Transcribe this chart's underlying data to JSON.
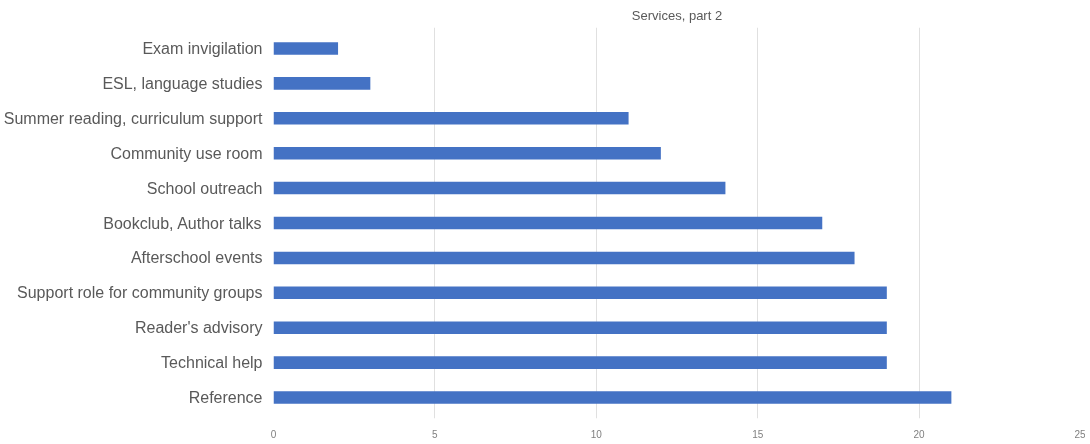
{
  "chart_data": {
    "type": "bar",
    "orientation": "horizontal",
    "title": "Services, part 2",
    "categories": [
      "Exam invigilation",
      "ESL, language studies",
      "Summer reading, curriculum support",
      "Community use room",
      "School outreach",
      "Bookclub, Author talks",
      "Afterschool events",
      "Support role for community groups",
      "Reader's advisory",
      "Technical help",
      "Reference"
    ],
    "values": [
      2,
      3,
      11,
      12,
      14,
      17,
      18,
      19,
      19,
      19,
      21
    ],
    "color": "#4472c4",
    "xlim": [
      0,
      25
    ],
    "xticks": [
      0,
      5,
      10,
      15,
      20,
      25
    ],
    "grid": "x"
  }
}
